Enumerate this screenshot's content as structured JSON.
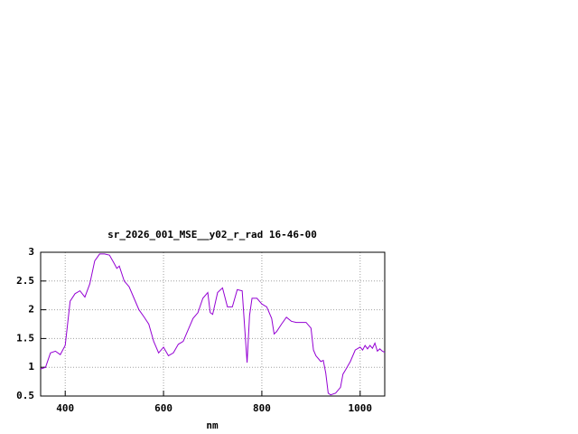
{
  "chart_data": {
    "type": "line",
    "title": "sr_2026_001_MSE__y02_r_rad 16-46-00",
    "x_label": "nm",
    "x": [
      350,
      360,
      370,
      380,
      390,
      400,
      410,
      420,
      430,
      440,
      450,
      460,
      470,
      480,
      490,
      500,
      505,
      510,
      520,
      530,
      540,
      550,
      560,
      570,
      580,
      590,
      600,
      610,
      620,
      630,
      640,
      650,
      660,
      670,
      680,
      690,
      695,
      700,
      710,
      720,
      730,
      740,
      750,
      760,
      765,
      770,
      775,
      780,
      790,
      800,
      810,
      820,
      825,
      830,
      840,
      850,
      860,
      870,
      880,
      890,
      900,
      905,
      910,
      920,
      925,
      930,
      935,
      940,
      950,
      960,
      965,
      970,
      980,
      990,
      1000,
      1005,
      1010,
      1015,
      1020,
      1025,
      1030,
      1035,
      1040,
      1045,
      1050
    ],
    "values": [
      0.97,
      1.0,
      1.25,
      1.28,
      1.22,
      1.38,
      2.15,
      2.28,
      2.33,
      2.22,
      2.45,
      2.85,
      2.97,
      2.97,
      2.95,
      2.8,
      2.72,
      2.76,
      2.5,
      2.4,
      2.2,
      2.0,
      1.88,
      1.75,
      1.45,
      1.25,
      1.35,
      1.2,
      1.25,
      1.4,
      1.45,
      1.65,
      1.85,
      1.95,
      2.2,
      2.3,
      1.95,
      1.92,
      2.3,
      2.38,
      2.05,
      2.05,
      2.35,
      2.33,
      1.7,
      1.08,
      1.9,
      2.2,
      2.2,
      2.1,
      2.05,
      1.85,
      1.58,
      1.62,
      1.75,
      1.87,
      1.8,
      1.78,
      1.78,
      1.78,
      1.68,
      1.3,
      1.2,
      1.1,
      1.12,
      0.9,
      0.55,
      0.52,
      0.55,
      0.65,
      0.88,
      0.95,
      1.1,
      1.3,
      1.35,
      1.3,
      1.38,
      1.32,
      1.38,
      1.33,
      1.42,
      1.28,
      1.32,
      1.28,
      1.26
    ],
    "color": "#9400d3",
    "xlim": [
      350,
      1050
    ],
    "xticks": [
      400,
      600,
      800,
      1000
    ],
    "ylim": [
      0.5,
      3
    ],
    "yticks": [
      0.5,
      1,
      1.5,
      2,
      2.5,
      3
    ],
    "grid": true
  }
}
